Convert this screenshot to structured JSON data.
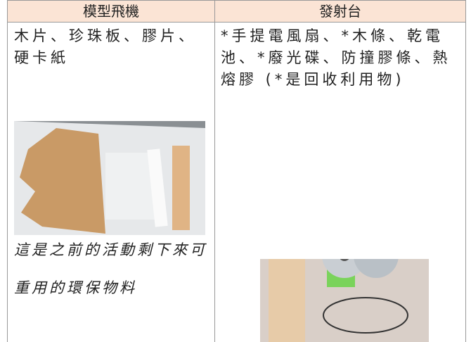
{
  "table": {
    "header": [
      "模型飛機",
      "發射台"
    ],
    "rows": [
      [
        "木片、珍珠板、膠片、硬卡紙",
        "*手提電風扇、*木條、乾電池、*廢光碟、防撞膠條、熱熔膠 (*是回收利用物)"
      ]
    ],
    "caption": "這是之前的活動剩下來可重用的環保物料"
  }
}
